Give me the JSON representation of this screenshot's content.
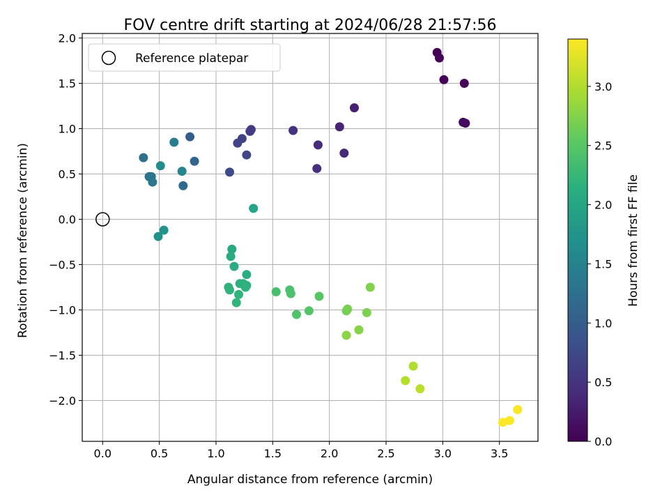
{
  "chart_data": {
    "type": "scatter",
    "title": "FOV centre drift starting at 2024/06/28 21:57:56",
    "xlabel": "Angular distance from reference (arcmin)",
    "ylabel": "Rotation from reference (arcmin)",
    "xlim": [
      -0.18,
      3.84
    ],
    "ylim": [
      -2.45,
      2.05
    ],
    "xticks": [
      "0.0",
      "0.5",
      "1.0",
      "1.5",
      "2.0",
      "2.5",
      "3.0",
      "3.5"
    ],
    "yticks": [
      "2.0",
      "1.5",
      "1.0",
      "0.5",
      "0.0",
      "−0.5",
      "−1.0",
      "−1.5",
      "−2.0"
    ],
    "grid": true,
    "legend": {
      "position": "top-left",
      "entries": [
        "Reference platepar"
      ]
    },
    "reference_point": {
      "x": 0.0,
      "y": 0.0
    },
    "colorbar": {
      "label": "Hours from first FF file",
      "range": [
        0.0,
        3.4
      ],
      "colormap": "viridis",
      "ticks": [
        "0.0",
        "0.5",
        "1.0",
        "1.5",
        "2.0",
        "2.5",
        "3.0"
      ]
    },
    "points": [
      {
        "x": 2.95,
        "y": 1.84,
        "h": 0.0
      },
      {
        "x": 2.97,
        "y": 1.78,
        "h": 0.02
      },
      {
        "x": 3.01,
        "y": 1.54,
        "h": 0.04
      },
      {
        "x": 3.19,
        "y": 1.5,
        "h": 0.06
      },
      {
        "x": 3.18,
        "y": 1.07,
        "h": 0.09
      },
      {
        "x": 3.2,
        "y": 1.06,
        "h": 0.1
      },
      {
        "x": 2.22,
        "y": 1.23,
        "h": 0.3
      },
      {
        "x": 2.09,
        "y": 1.02,
        "h": 0.33
      },
      {
        "x": 2.13,
        "y": 0.73,
        "h": 0.38
      },
      {
        "x": 1.9,
        "y": 0.82,
        "h": 0.42
      },
      {
        "x": 1.89,
        "y": 0.56,
        "h": 0.45
      },
      {
        "x": 1.68,
        "y": 0.98,
        "h": 0.48
      },
      {
        "x": 1.31,
        "y": 0.99,
        "h": 0.58
      },
      {
        "x": 1.3,
        "y": 0.97,
        "h": 0.6
      },
      {
        "x": 1.23,
        "y": 0.89,
        "h": 0.65
      },
      {
        "x": 1.19,
        "y": 0.84,
        "h": 0.68
      },
      {
        "x": 1.27,
        "y": 0.71,
        "h": 0.72
      },
      {
        "x": 1.12,
        "y": 0.52,
        "h": 0.78
      },
      {
        "x": 0.77,
        "y": 0.91,
        "h": 1.0
      },
      {
        "x": 0.81,
        "y": 0.64,
        "h": 1.1
      },
      {
        "x": 0.71,
        "y": 0.37,
        "h": 1.18
      },
      {
        "x": 0.36,
        "y": 0.68,
        "h": 1.25
      },
      {
        "x": 0.41,
        "y": 0.47,
        "h": 1.3
      },
      {
        "x": 0.43,
        "y": 0.47,
        "h": 1.33
      },
      {
        "x": 0.44,
        "y": 0.41,
        "h": 1.37
      },
      {
        "x": 0.63,
        "y": 0.85,
        "h": 1.45
      },
      {
        "x": 0.7,
        "y": 0.53,
        "h": 1.55
      },
      {
        "x": 0.51,
        "y": 0.59,
        "h": 1.65
      },
      {
        "x": 0.49,
        "y": -0.19,
        "h": 1.72
      },
      {
        "x": 0.54,
        "y": -0.12,
        "h": 1.75
      },
      {
        "x": 1.33,
        "y": 0.12,
        "h": 2.0
      },
      {
        "x": 1.14,
        "y": -0.33,
        "h": 2.05
      },
      {
        "x": 1.13,
        "y": -0.41,
        "h": 2.08
      },
      {
        "x": 1.16,
        "y": -0.52,
        "h": 2.1
      },
      {
        "x": 1.27,
        "y": -0.61,
        "h": 2.12
      },
      {
        "x": 1.21,
        "y": -0.71,
        "h": 2.14
      },
      {
        "x": 1.24,
        "y": -0.71,
        "h": 2.15
      },
      {
        "x": 1.27,
        "y": -0.73,
        "h": 2.16
      },
      {
        "x": 1.26,
        "y": -0.75,
        "h": 2.17
      },
      {
        "x": 1.11,
        "y": -0.75,
        "h": 2.18
      },
      {
        "x": 1.12,
        "y": -0.78,
        "h": 2.19
      },
      {
        "x": 1.2,
        "y": -0.83,
        "h": 2.2
      },
      {
        "x": 1.18,
        "y": -0.92,
        "h": 2.22
      },
      {
        "x": 1.53,
        "y": -0.8,
        "h": 2.4
      },
      {
        "x": 1.65,
        "y": -0.78,
        "h": 2.42
      },
      {
        "x": 1.66,
        "y": -0.82,
        "h": 2.43
      },
      {
        "x": 1.71,
        "y": -1.05,
        "h": 2.45
      },
      {
        "x": 1.82,
        "y": -1.01,
        "h": 2.48
      },
      {
        "x": 1.91,
        "y": -0.85,
        "h": 2.5
      },
      {
        "x": 2.15,
        "y": -1.01,
        "h": 2.68
      },
      {
        "x": 2.16,
        "y": -0.99,
        "h": 2.7
      },
      {
        "x": 2.33,
        "y": -1.03,
        "h": 2.73
      },
      {
        "x": 2.36,
        "y": -0.75,
        "h": 2.75
      },
      {
        "x": 2.26,
        "y": -1.22,
        "h": 2.78
      },
      {
        "x": 2.15,
        "y": -1.28,
        "h": 2.8
      },
      {
        "x": 2.74,
        "y": -1.62,
        "h": 3.0
      },
      {
        "x": 2.67,
        "y": -1.78,
        "h": 3.02
      },
      {
        "x": 2.8,
        "y": -1.87,
        "h": 3.05
      },
      {
        "x": 3.66,
        "y": -2.1,
        "h": 3.38
      },
      {
        "x": 3.59,
        "y": -2.22,
        "h": 3.39
      },
      {
        "x": 3.53,
        "y": -2.24,
        "h": 3.4
      }
    ]
  }
}
